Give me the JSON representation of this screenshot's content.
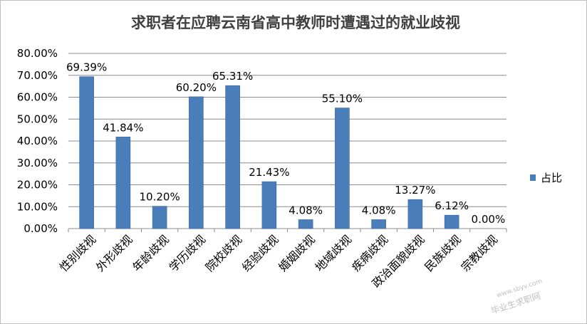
{
  "chart_data": {
    "type": "bar",
    "title": "求职者在应聘云南省高中教师时遭遇过的就业歧视",
    "categories": [
      "性别歧视",
      "外形歧视",
      "年龄歧视",
      "学历歧视",
      "院校歧视",
      "经验歧视",
      "婚姻歧视",
      "地域歧视",
      "疾病歧视",
      "政治面貌歧视",
      "民族歧视",
      "宗教歧视"
    ],
    "series": [
      {
        "name": "占比",
        "values": [
          69.39,
          41.84,
          10.2,
          60.2,
          65.31,
          21.43,
          4.08,
          55.1,
          4.08,
          13.27,
          6.12,
          0.0
        ],
        "labels": [
          "69.39%",
          "41.84%",
          "10.20%",
          "60.20%",
          "65.31%",
          "21.43%",
          "4.08%",
          "55.10%",
          "4.08%",
          "13.27%",
          "6.12%",
          "0.00%"
        ],
        "color": "#4a7ebb"
      }
    ],
    "yticks": [
      "0.00%",
      "10.00%",
      "20.00%",
      "30.00%",
      "40.00%",
      "50.00%",
      "60.00%",
      "70.00%",
      "80.00%"
    ],
    "ylim": [
      0,
      80
    ],
    "xlabel": "",
    "ylabel": "",
    "grid": true,
    "legend": "right"
  },
  "watermark": {
    "text": "毕业生求职网",
    "url": "www.sbyv.com"
  }
}
